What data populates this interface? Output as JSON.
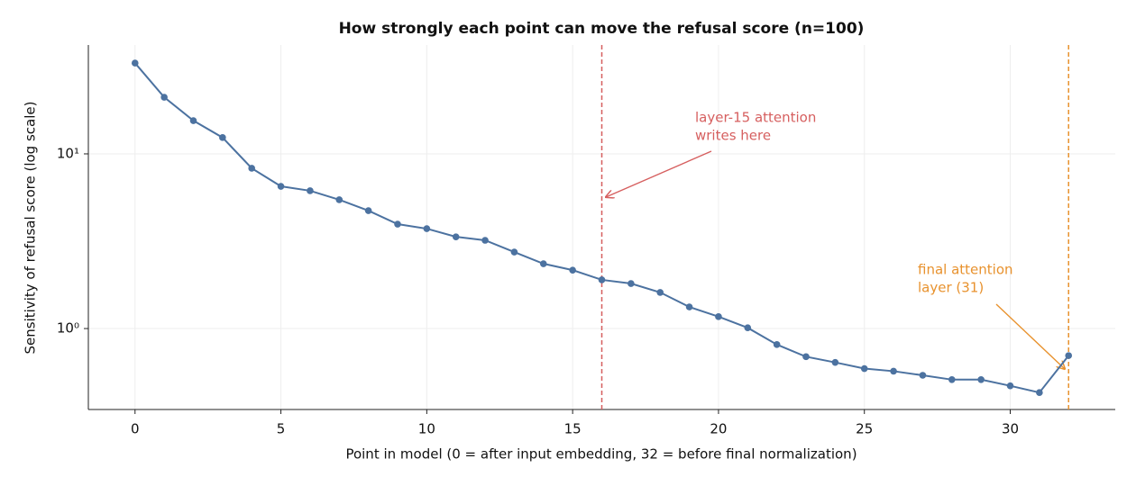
{
  "chart_data": {
    "type": "line",
    "title": "How strongly each point can move the refusal score (n=100)",
    "x_label": "Point in model (0 = after input embedding, 32 = before final normalization)",
    "y_label": "Sensitivity of refusal score (log scale)",
    "x": [
      0,
      1,
      2,
      3,
      4,
      5,
      6,
      7,
      8,
      9,
      10,
      11,
      12,
      13,
      14,
      15,
      16,
      17,
      18,
      19,
      20,
      21,
      22,
      23,
      24,
      25,
      26,
      27,
      28,
      29,
      30,
      31,
      32
    ],
    "values": [
      33.1,
      21.1,
      15.5,
      12.4,
      8.27,
      6.52,
      6.15,
      5.46,
      4.73,
      3.96,
      3.73,
      3.35,
      3.2,
      2.74,
      2.35,
      2.16,
      1.9,
      1.81,
      1.61,
      1.33,
      1.17,
      1.01,
      0.81,
      0.69,
      0.64,
      0.59,
      0.57,
      0.54,
      0.51,
      0.51,
      0.47,
      0.43,
      0.7
    ],
    "color": "#4c72a0",
    "yscale": "log",
    "xlim": [
      -1.6,
      33.6
    ],
    "ylim": [
      0.344,
      42
    ],
    "xticks": [
      0,
      5,
      10,
      15,
      20,
      25,
      30
    ],
    "yticks": [
      {
        "value": 1,
        "label": "10⁰"
      },
      {
        "value": 10,
        "label": "10¹"
      }
    ],
    "grid": true,
    "vlines": [
      {
        "x": 16,
        "color": "#d65f5f",
        "text": [
          "layer-15 attention",
          "writes here"
        ]
      },
      {
        "x": 32,
        "color": "#e8922e",
        "text": [
          "final attention",
          "layer (31)"
        ]
      }
    ]
  }
}
